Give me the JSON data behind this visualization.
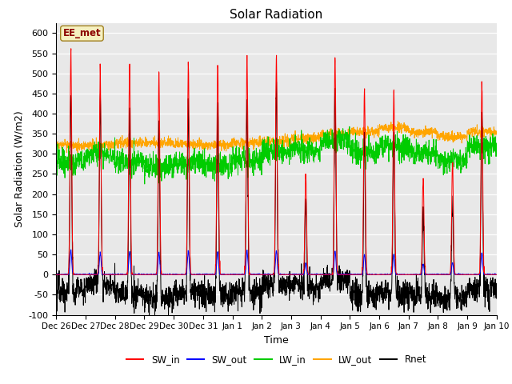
{
  "title": "Solar Radiation",
  "ylabel": "Solar Radiation (W/m2)",
  "xlabel": "Time",
  "ylim": [
    -100,
    625
  ],
  "yticks": [
    -100,
    -50,
    0,
    50,
    100,
    150,
    200,
    250,
    300,
    350,
    400,
    450,
    500,
    550,
    600
  ],
  "x_tick_labels": [
    "Dec 26",
    "Dec 27",
    "Dec 28",
    "Dec 29",
    "Dec 30",
    "Dec 31",
    "Jan 1",
    "Jan 2",
    "Jan 3",
    "Jan 4",
    "Jan 5",
    "Jan 6",
    "Jan 7",
    "Jan 8",
    "Jan 9",
    "Jan 10"
  ],
  "annotation_text": "EE_met",
  "annotation_box_color": "#f5f0c0",
  "annotation_text_color": "#8b0000",
  "line_colors": {
    "SW_in": "#ff0000",
    "SW_out": "#0000ff",
    "LW_in": "#00cc00",
    "LW_out": "#ffa500",
    "Rnet": "#000000"
  },
  "bg_color": "#e8e8e8",
  "fig_bg_color": "#ffffff",
  "num_days": 15,
  "points_per_day": 144
}
